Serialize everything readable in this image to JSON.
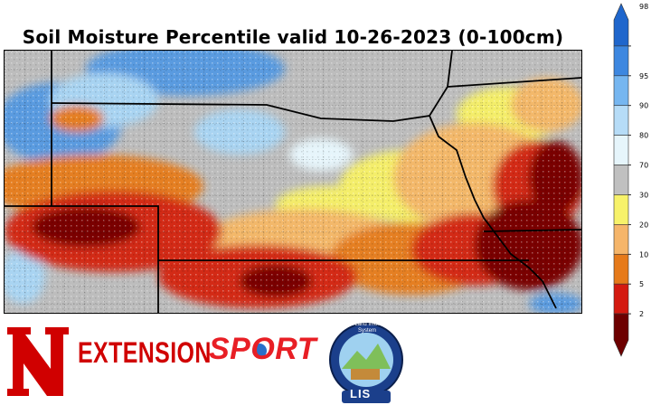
{
  "title": "Soil Moisture Percentile valid 10-26-2023 (0-100cm)",
  "colorbar": {
    "ticks": [
      "98",
      "95",
      "90",
      "80",
      "70",
      "30",
      "20",
      "10",
      "5",
      "2"
    ],
    "colors": [
      "#1f66cc",
      "#3d87e0",
      "#76b6f0",
      "#b6dcf7",
      "#e6f5fb",
      "#c0c0c0",
      "#f7f26a",
      "#f5b56a",
      "#e67a1a",
      "#d41a10",
      "#6d0000"
    ]
  },
  "logos": {
    "extension_text": "EXTENSION",
    "sport_text": "SPORT",
    "lis_text": "LIS",
    "nasa_ring_text": "NASA Land Information System"
  },
  "map_colors": {
    "wet_blue": "#5a9be0",
    "light_blue": "#a9d4f2",
    "gray": "#bdbdbd",
    "yellow": "#f4ee6a",
    "light_orange": "#f3b86b",
    "orange": "#e57f22",
    "red": "#d32a14",
    "dark_red": "#7a0505"
  }
}
